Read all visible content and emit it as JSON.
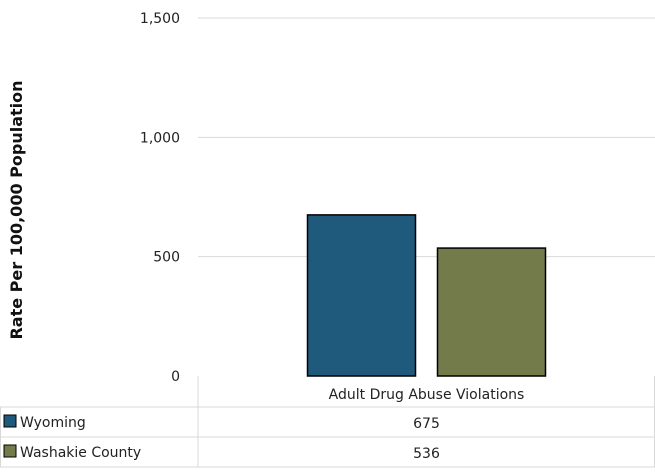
{
  "chart_data": {
    "type": "bar",
    "categories": [
      "Adult Drug Abuse Violations"
    ],
    "series": [
      {
        "name": "Wyoming",
        "values": [
          675
        ],
        "color": "#1f5a7c"
      },
      {
        "name": "Washakie County",
        "values": [
          536
        ],
        "color": "#737b4a"
      }
    ],
    "ylabel": "Rate Per 100,000 Population",
    "ylim": [
      0,
      1500
    ],
    "yticks": [
      0,
      500,
      1000,
      1500
    ],
    "ytick_labels": [
      "0",
      "500",
      "1,000",
      "1,500"
    ],
    "table": {
      "rows": [
        {
          "label": "Wyoming",
          "value": "675"
        },
        {
          "label": "Washakie County",
          "value": "536"
        }
      ]
    },
    "grid": true,
    "legend": "data-table"
  }
}
